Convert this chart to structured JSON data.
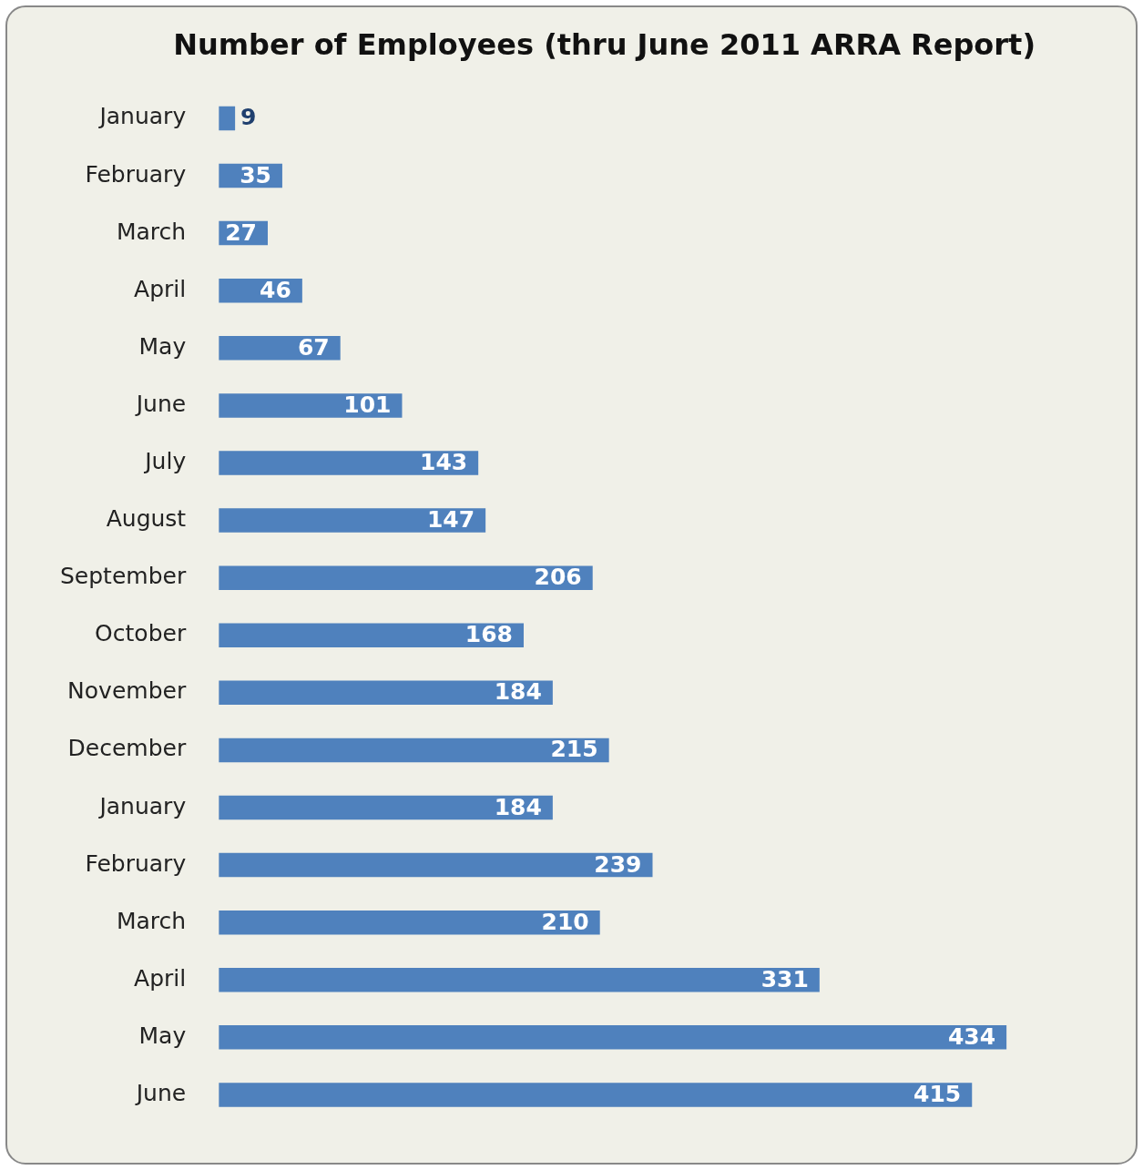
{
  "chart_data": {
    "type": "bar",
    "orientation": "horizontal",
    "title": "Number of Employees (thru June 2011 ARRA Report)",
    "categories": [
      "January",
      "February",
      "March",
      "April",
      "May",
      "June",
      "July",
      "August",
      "September",
      "October",
      "November",
      "December",
      "January",
      "February",
      "March",
      "April",
      "May",
      "June"
    ],
    "values": [
      9,
      35,
      27,
      46,
      67,
      101,
      143,
      147,
      206,
      168,
      184,
      215,
      184,
      239,
      210,
      331,
      434,
      415
    ],
    "color": "#4f81bd",
    "data_labels": true
  }
}
